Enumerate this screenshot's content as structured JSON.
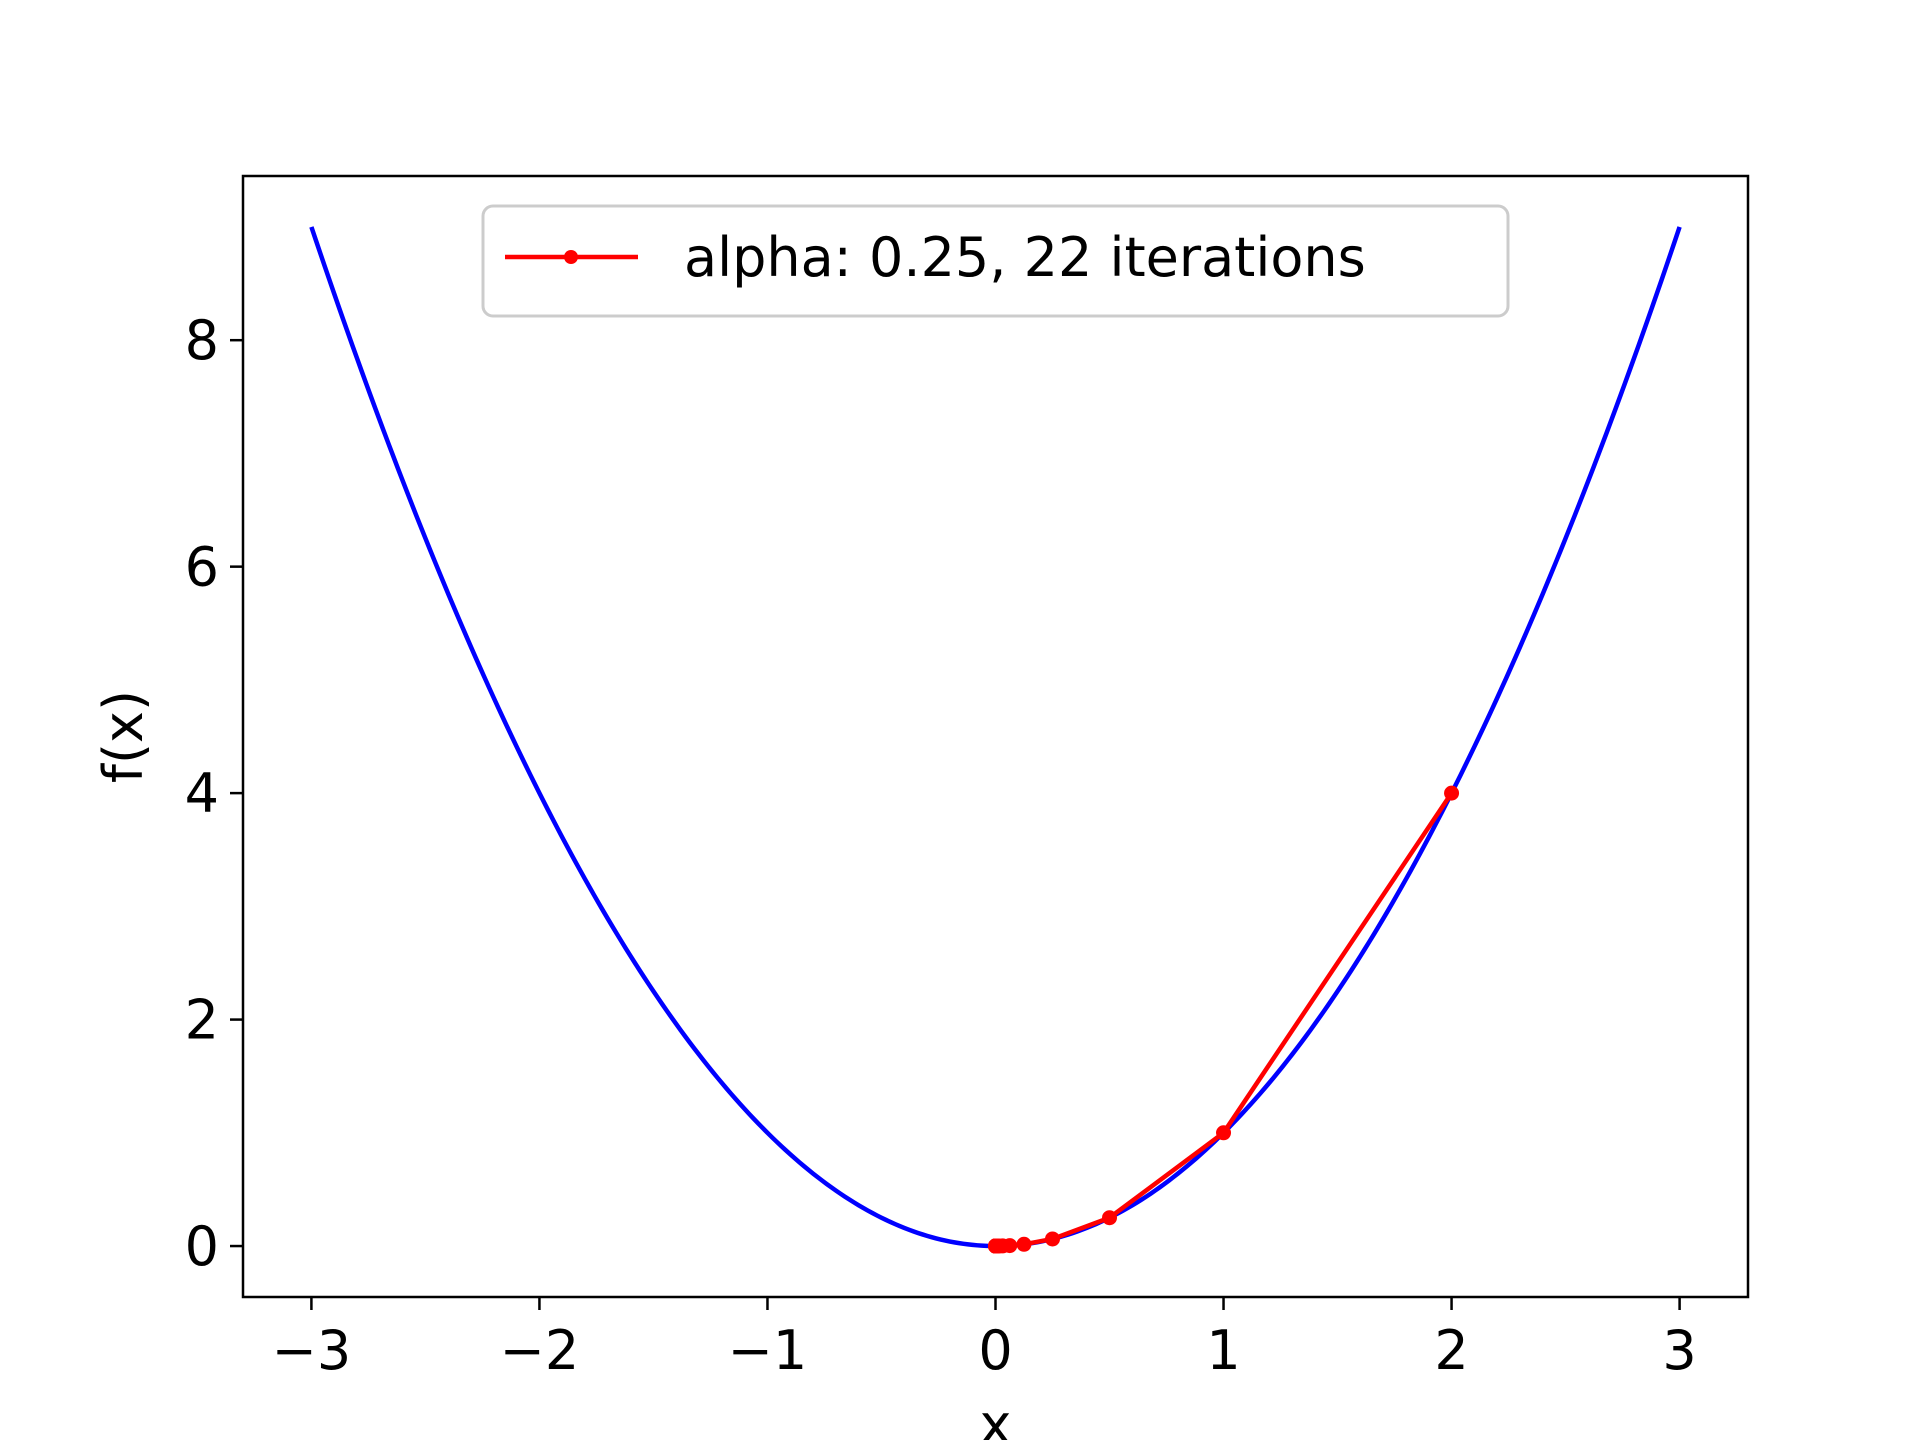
{
  "chart_data": {
    "type": "line",
    "title": "",
    "xlabel": "x",
    "ylabel": "f(x)",
    "xlim": [
      -3.3,
      3.3
    ],
    "ylim": [
      -0.45,
      9.45
    ],
    "x_ticks": [
      -3,
      -2,
      -1,
      0,
      1,
      2,
      3
    ],
    "x_tick_labels": [
      "−3",
      "−2",
      "−1",
      "0",
      "1",
      "2",
      "3"
    ],
    "y_ticks": [
      0,
      2,
      4,
      6,
      8
    ],
    "y_tick_labels": [
      "0",
      "2",
      "4",
      "6",
      "8"
    ],
    "grid": false,
    "legend_position": "upper center",
    "series": [
      {
        "function": "f(x) = x^2",
        "x_range": [
          -3,
          3
        ],
        "color": "#0000ff",
        "style": "line"
      },
      {
        "name": "alpha: 0.25, 22 iterations",
        "color": "#ff0000",
        "style": "line-with-markers",
        "x": [
          2,
          1,
          0.5,
          0.25,
          0.125,
          0.0625,
          0.03125,
          0.015625,
          0.0078125,
          0.00390625,
          0.001953125,
          0.0009765625,
          0.00048828125,
          0.000244140625,
          0.0001220703125,
          6.103515625e-05,
          3.0517578125e-05,
          1.52587890625e-05,
          7.62939453125e-06,
          3.814697265625e-06,
          1.9073486328125e-06,
          9.5367431640625e-07
        ],
        "y": [
          4,
          1,
          0.25,
          0.0625,
          0.015625,
          0.00390625,
          0.0009765625,
          0.000244140625,
          6.103515625e-05,
          1.52587890625e-05,
          3.814697265625e-06,
          9.5367431640625e-07,
          2.384185791015625e-07,
          5.960464477539063e-08,
          1.4901161193847656e-08,
          3.725290298461914e-09,
          9.313225746154785e-10,
          2.3283064365386963e-10,
          5.820766091346741e-11,
          1.4551915228366852e-11,
          3.637978807091713e-12,
          9.094947017729282e-13
        ]
      }
    ]
  }
}
